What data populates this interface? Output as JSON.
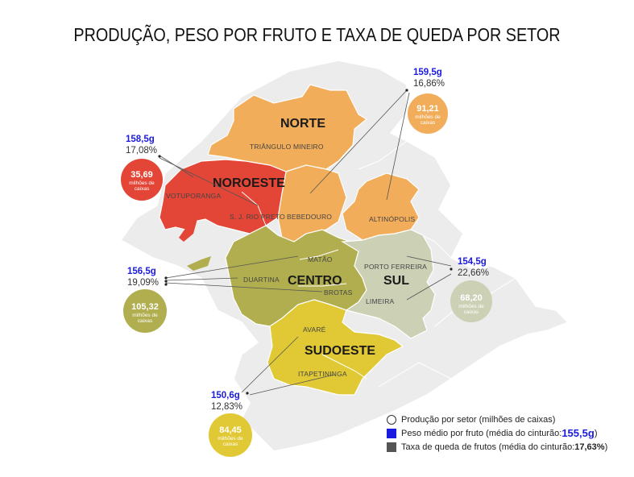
{
  "title": "PRODUÇÃO, PESO POR FRUTO E TAXA DE QUEDA POR SETOR",
  "colors": {
    "norte": "#f2ad5a",
    "noroeste": "#e34637",
    "centro": "#b1ae4f",
    "sul": "#ccd0b5",
    "sudoeste": "#e0c935",
    "background_state": "#ececec",
    "peso": "#1a1ae0",
    "taxa": "#333333"
  },
  "sectors": {
    "norte": {
      "name": "NORTE",
      "peso": "159,5g",
      "taxa": "16,86%",
      "producao": "91,21",
      "unit_line1": "milhões de",
      "unit_line2": "caixas"
    },
    "noroeste": {
      "name": "NOROESTE",
      "peso": "158,5g",
      "taxa": "17,08%",
      "producao": "35,69",
      "unit_line1": "milhões de",
      "unit_line2": "caixas"
    },
    "centro": {
      "name": "CENTRO",
      "peso": "156,5g",
      "taxa": "19,09%",
      "producao": "105,32",
      "unit_line1": "milhões de",
      "unit_line2": "caixas"
    },
    "sul": {
      "name": "SUL",
      "peso": "154,5g",
      "taxa": "22,66%",
      "producao": "68,20",
      "unit_line1": "milhões de",
      "unit_line2": "caixas"
    },
    "sudoeste": {
      "name": "SUDOESTE",
      "peso": "150,6g",
      "taxa": "12,83%",
      "producao": "84,45",
      "unit_line1": "milhões de",
      "unit_line2": "caixas"
    }
  },
  "regions": {
    "triangulo_mineiro": "TRIÂNGULO MINEIRO",
    "votuporanga": "VOTUPORANGA",
    "sj_rio_preto": "S. J. RIO PRETO",
    "bebedouro": "BEBEDOURO",
    "altinopolis": "ALTINÓPOLIS",
    "matao": "MATÃO",
    "duartina": "DUARTINA",
    "brotas": "BROTAS",
    "porto_ferreira": "PORTO FERREIRA",
    "limeira": "LIMEIRA",
    "avare": "AVARÉ",
    "itapetininga": "ITAPETININGA"
  },
  "legend": {
    "producao_label": "Produção por setor (milhões de caixas)",
    "peso_label": "Peso médio por fruto (média do cinturão: ",
    "peso_avg": "155,5g",
    "peso_close": ")",
    "taxa_label": "Taxa de queda de frutos (média do cinturão: ",
    "taxa_avg": "17,63%",
    "taxa_close": ")"
  }
}
